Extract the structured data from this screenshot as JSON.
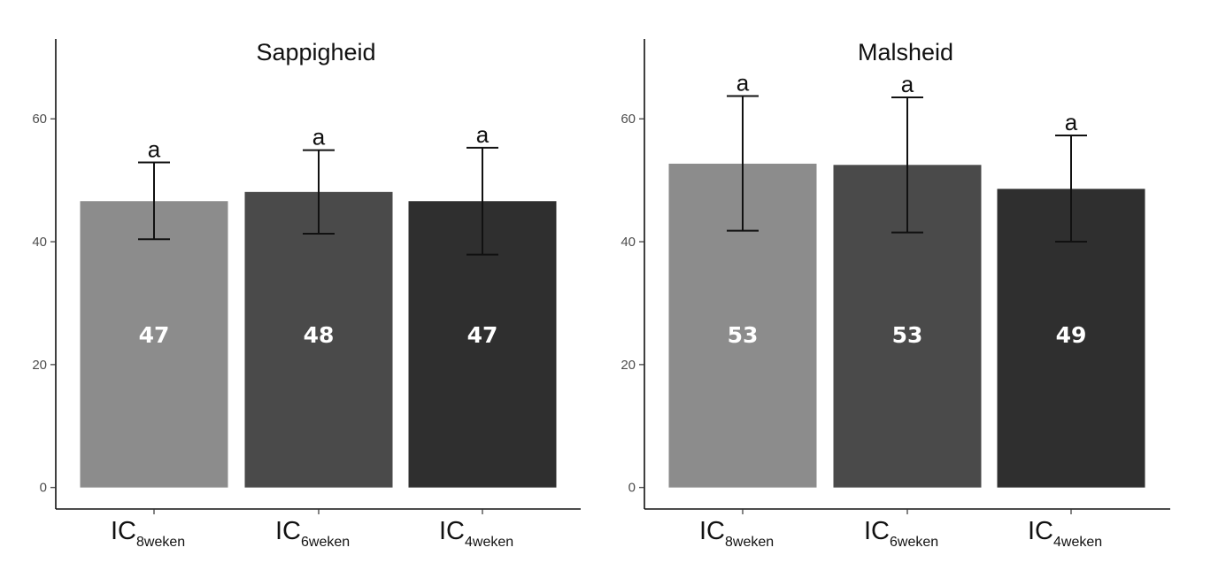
{
  "chart_data": [
    {
      "type": "bar",
      "title": "Sappigheid",
      "categories": [
        {
          "main": "IC",
          "sub": "8weken"
        },
        {
          "main": "IC",
          "sub": "6weken"
        },
        {
          "main": "IC",
          "sub": "4weken"
        }
      ],
      "values": [
        46.6,
        48.1,
        46.6
      ],
      "value_labels": [
        "47",
        "48",
        "47"
      ],
      "error_low": [
        40.4,
        41.3,
        37.9
      ],
      "error_high": [
        52.9,
        54.9,
        55.3
      ],
      "significance": [
        "a",
        "a",
        "a"
      ],
      "bar_colors": [
        "#8c8c8c",
        "#4a4a4a",
        "#2f2f2f"
      ],
      "yticks": [
        0,
        20,
        40,
        60
      ],
      "ylim": [
        -3.5,
        73
      ],
      "xlabel": "",
      "ylabel": "",
      "grid": false
    },
    {
      "type": "bar",
      "title": "Malsheid",
      "categories": [
        {
          "main": "IC",
          "sub": "8weken"
        },
        {
          "main": "IC",
          "sub": "6weken"
        },
        {
          "main": "IC",
          "sub": "4weken"
        }
      ],
      "values": [
        52.7,
        52.5,
        48.6
      ],
      "value_labels": [
        "53",
        "53",
        "49"
      ],
      "error_low": [
        41.8,
        41.5,
        40.0
      ],
      "error_high": [
        63.7,
        63.5,
        57.3
      ],
      "significance": [
        "a",
        "a",
        "a"
      ],
      "bar_colors": [
        "#8c8c8c",
        "#4a4a4a",
        "#2f2f2f"
      ],
      "yticks": [
        0,
        20,
        40,
        60
      ],
      "ylim": [
        -3.5,
        73
      ],
      "xlabel": "",
      "ylabel": "",
      "grid": false
    }
  ]
}
